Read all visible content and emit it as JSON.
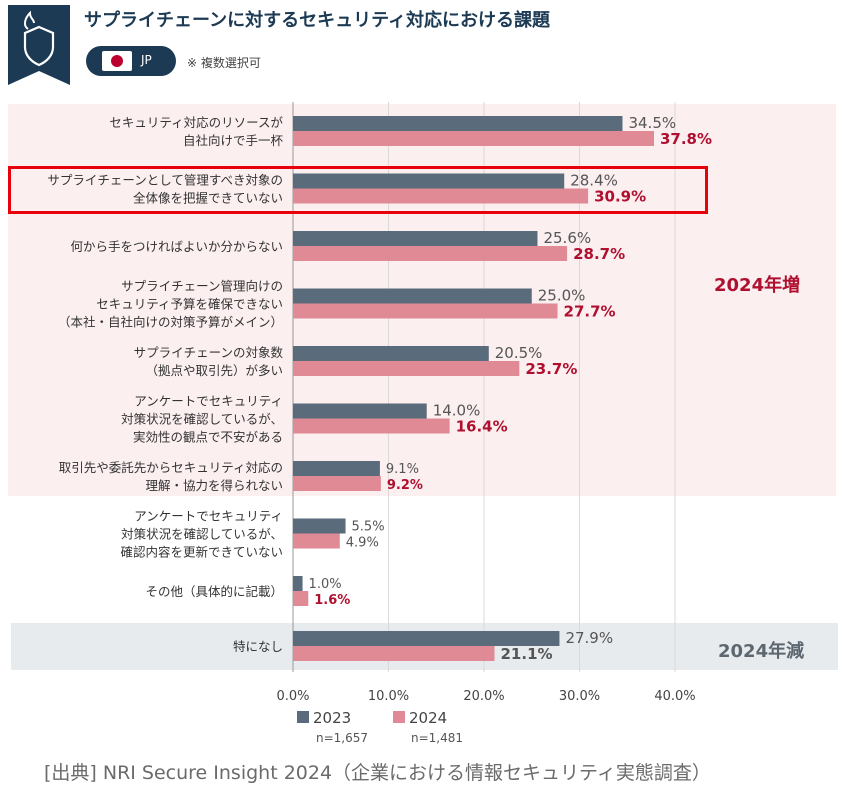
{
  "header": {
    "title": "サプライチェーンに対するセキュリティ対応における課題",
    "badge_icon": "shield-flame-icon",
    "country_code": "JP",
    "country_flag_icon": "japan-flag-icon",
    "note": "※ 複数選択可"
  },
  "annotations": {
    "increase_tag": "2024年増",
    "decrease_tag": "2024年減"
  },
  "legend": {
    "items": [
      {
        "label": "2023",
        "n": "n=1,657",
        "color": "#5a6b7b"
      },
      {
        "label": "2024",
        "n": "n=1,481",
        "color": "#e08a96"
      }
    ]
  },
  "source": "[出典] NRI Secure Insight 2024（企業における情報セキュリティ実態調査）",
  "chart_data": {
    "type": "bar",
    "orientation": "horizontal",
    "xlim": [
      0,
      40
    ],
    "x_ticks": [
      "0.0%",
      "10.0%",
      "20.0%",
      "30.0%",
      "40.0%"
    ],
    "grid": true,
    "colors": {
      "2023": "#5a6b7b",
      "2024": "#e08a96",
      "2024_label": "#b01030"
    },
    "categories": [
      [
        "セキュリティ対応のリソースが",
        "自社向けで手一杯"
      ],
      [
        "サプライチェーンとして管理すべき対象の",
        "全体像を把握できていない"
      ],
      [
        "何から手をつければよいか分からない"
      ],
      [
        "サプライチェーン管理向けの",
        "セキュリティ予算を確保できない",
        "（本社・自社向けの対策予算がメイン）"
      ],
      [
        "サプライチェーンの対象数",
        "（拠点や取引先）が多い"
      ],
      [
        "アンケートでセキュリティ",
        "対策状況を確認しているが、",
        "実効性の観点で不安がある"
      ],
      [
        "取引先や委託先からセキュリティ対応の",
        "理解・協力を得られない"
      ],
      [
        "アンケートでセキュリティ",
        "対策状況を確認しているが、",
        "確認内容を更新できていない"
      ],
      [
        "その他（具体的に記載）"
      ],
      [
        "特になし"
      ]
    ],
    "series": [
      {
        "name": "2023",
        "values": [
          34.5,
          28.4,
          25.6,
          25.0,
          20.5,
          14.0,
          9.1,
          5.5,
          1.0,
          27.9
        ],
        "labels": [
          "34.5%",
          "28.4%",
          "25.6%",
          "25.0%",
          "20.5%",
          "14.0%",
          "9.1%",
          "5.5%",
          "1.0%",
          "27.9%"
        ]
      },
      {
        "name": "2024",
        "values": [
          37.8,
          30.9,
          28.7,
          27.7,
          23.7,
          16.4,
          9.2,
          4.9,
          1.6,
          21.1
        ],
        "labels": [
          "37.8%",
          "30.9%",
          "28.7%",
          "27.7%",
          "23.7%",
          "16.4%",
          "9.2%",
          "4.9%",
          "1.6%",
          "21.1%"
        ]
      }
    ]
  }
}
